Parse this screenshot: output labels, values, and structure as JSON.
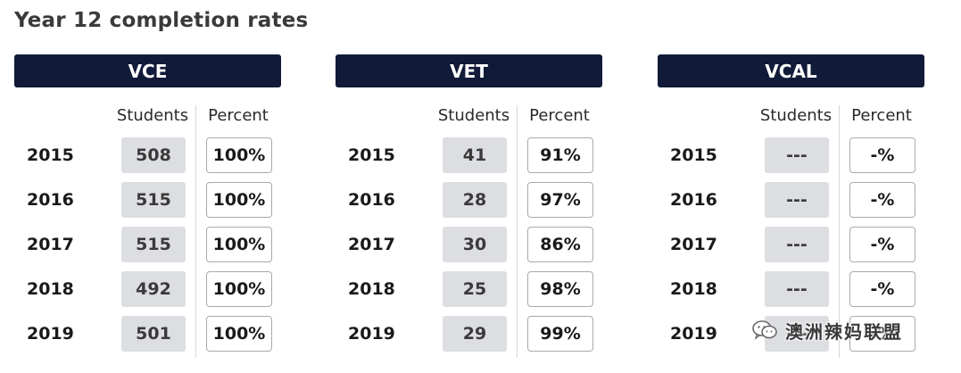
{
  "title": "Year 12 completion rates",
  "columns": {
    "students": "Students",
    "percent": "Percent"
  },
  "panels": [
    {
      "header": "VCE",
      "rows": [
        {
          "year": "2015",
          "students": "508",
          "percent": "100%"
        },
        {
          "year": "2016",
          "students": "515",
          "percent": "100%"
        },
        {
          "year": "2017",
          "students": "515",
          "percent": "100%"
        },
        {
          "year": "2018",
          "students": "492",
          "percent": "100%"
        },
        {
          "year": "2019",
          "students": "501",
          "percent": "100%"
        }
      ]
    },
    {
      "header": "VET",
      "rows": [
        {
          "year": "2015",
          "students": "41",
          "percent": "91%"
        },
        {
          "year": "2016",
          "students": "28",
          "percent": "97%"
        },
        {
          "year": "2017",
          "students": "30",
          "percent": "86%"
        },
        {
          "year": "2018",
          "students": "25",
          "percent": "98%"
        },
        {
          "year": "2019",
          "students": "29",
          "percent": "99%"
        }
      ]
    },
    {
      "header": "VCAL",
      "rows": [
        {
          "year": "2015",
          "students": "---",
          "percent": "-%"
        },
        {
          "year": "2016",
          "students": "---",
          "percent": "-%"
        },
        {
          "year": "2017",
          "students": "---",
          "percent": "-%"
        },
        {
          "year": "2018",
          "students": "---",
          "percent": "-%"
        },
        {
          "year": "2019",
          "students": "---",
          "percent": "-%"
        }
      ]
    }
  ],
  "watermark": {
    "text": "澳洲辣妈联盟",
    "icon": "wechat-icon"
  }
}
